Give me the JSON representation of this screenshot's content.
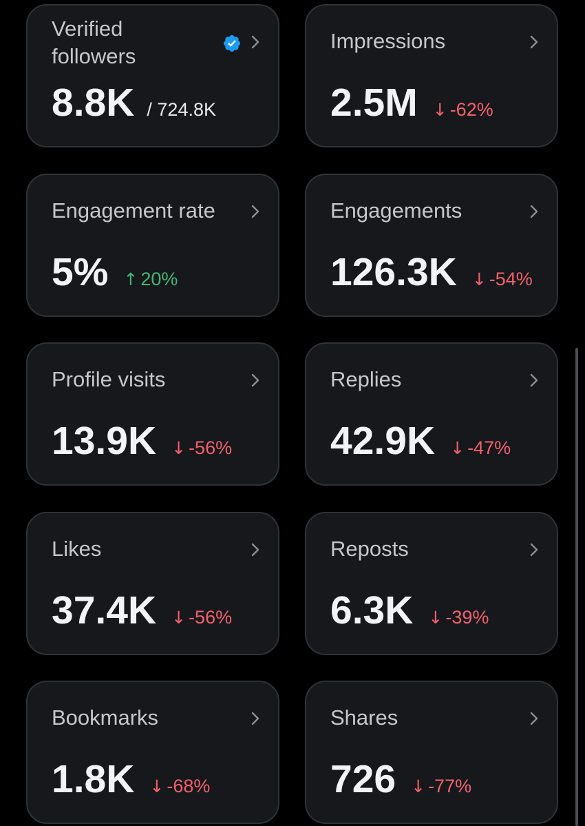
{
  "colors": {
    "background": "#000000",
    "card": "#16181c",
    "card_border": "#2f3336",
    "positive": "#42b777",
    "negative": "#f4606c",
    "verified": "#1d9bf0"
  },
  "cards": [
    {
      "title": "Verified followers",
      "title_line1": "Verified",
      "title_line2": "followers",
      "value": "8.8K",
      "total": "/ 724.8K",
      "icon": "verified-badge-icon"
    },
    {
      "title": "Impressions",
      "value": "2.5M",
      "delta_arrow": "↓",
      "delta": "-62%",
      "trend": "down"
    },
    {
      "title": "Engagement rate",
      "value": "5%",
      "delta_arrow": "↑",
      "delta": "20%",
      "trend": "up"
    },
    {
      "title": "Engagements",
      "value": "126.3K",
      "delta_arrow": "↓",
      "delta": "-54%",
      "trend": "down"
    },
    {
      "title": "Profile visits",
      "value": "13.9K",
      "delta_arrow": "↓",
      "delta": "-56%",
      "trend": "down"
    },
    {
      "title": "Replies",
      "value": "42.9K",
      "delta_arrow": "↓",
      "delta": "-47%",
      "trend": "down"
    },
    {
      "title": "Likes",
      "value": "37.4K",
      "delta_arrow": "↓",
      "delta": "-56%",
      "trend": "down"
    },
    {
      "title": "Reposts",
      "value": "6.3K",
      "delta_arrow": "↓",
      "delta": "-39%",
      "trend": "down"
    },
    {
      "title": "Bookmarks",
      "value": "1.8K",
      "delta_arrow": "↓",
      "delta": "-68%",
      "trend": "down"
    },
    {
      "title": "Shares",
      "value": "726",
      "delta_arrow": "↓",
      "delta": "-77%",
      "trend": "down"
    }
  ]
}
